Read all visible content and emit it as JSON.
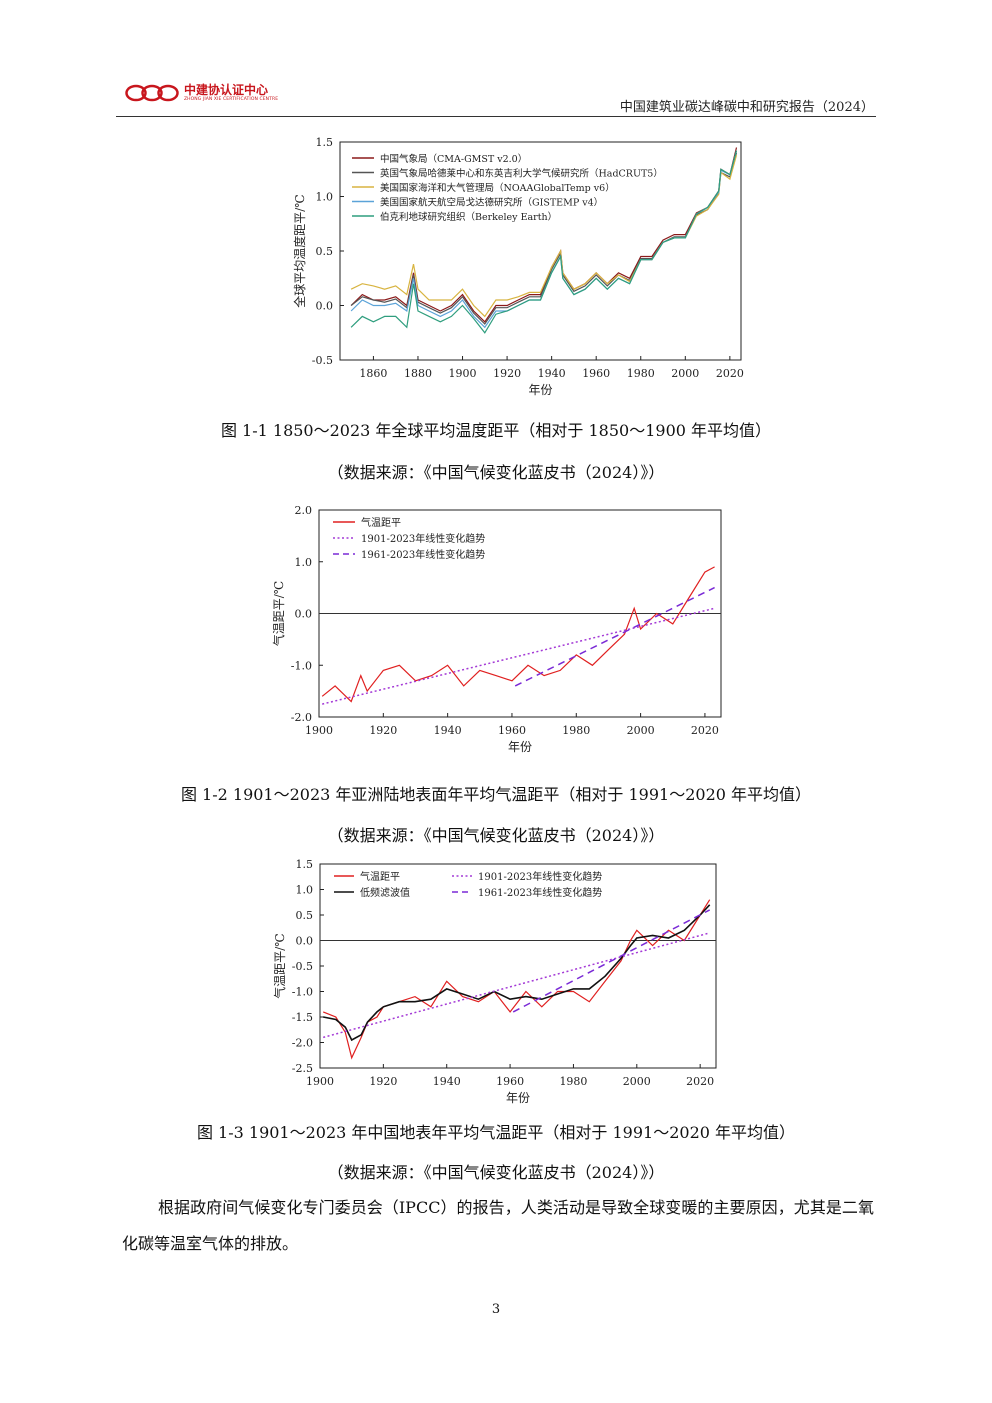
{
  "header": {
    "logo_cn": "中建协认证中心",
    "logo_en": "ZHONG JIAN XIE CERTIFICATION CENTRE",
    "title": "中国建筑业碳达峰碳中和研究报告（2024）"
  },
  "figures": [
    {
      "caption": "图 1-1 1850～2023 年全球平均温度距平（相对于 1850～1900 年平均值）",
      "source": "（数据来源：《中国气候变化蓝皮书（2024）》）"
    },
    {
      "caption": "图 1-2 1901～2023 年亚洲陆地表面年平均气温距平（相对于 1991～2020 年平均值）",
      "source": "（数据来源：《中国气候变化蓝皮书（2024）》）"
    },
    {
      "caption": "图 1-3 1901～2023 年中国地表年平均气温距平（相对于 1991～2020 年平均值）",
      "source": "（数据来源：《中国气候变化蓝皮书（2024）》）"
    }
  ],
  "body_text": "根据政府间气候变化专门委员会（IPCC）的报告，人类活动是导致全球变暖的主要原因，尤其是二氧化碳等温室气体的排放。",
  "page_number": "3",
  "chart_data": [
    {
      "type": "line",
      "title": "",
      "xlabel": "年份",
      "ylabel": "全球平均温度距平/℃",
      "xlim": [
        1845,
        2025
      ],
      "ylim": [
        -0.5,
        1.5
      ],
      "xticks": [
        "1860",
        "1880",
        "1900",
        "1920",
        "1940",
        "1960",
        "1980",
        "2000",
        "2020"
      ],
      "yticks": [
        "-0.5",
        "0.0",
        "0.5",
        "1.0",
        "1.5"
      ],
      "legend_position": "top-left",
      "grid": false,
      "x": [
        1850,
        1855,
        1860,
        1865,
        1870,
        1875,
        1878,
        1880,
        1885,
        1890,
        1895,
        1900,
        1905,
        1910,
        1915,
        1920,
        1925,
        1930,
        1935,
        1940,
        1944,
        1945,
        1950,
        1955,
        1960,
        1965,
        1970,
        1975,
        1980,
        1985,
        1990,
        1995,
        2000,
        2005,
        2010,
        2015,
        2016,
        2020,
        2023
      ],
      "series": [
        {
          "name": "中国气象局（CMA-GMST v2.0）",
          "color": "#8b1a1a",
          "values": [
            0.0,
            0.1,
            0.05,
            0.05,
            0.08,
            0.0,
            0.3,
            0.05,
            0.0,
            -0.05,
            0.0,
            0.1,
            -0.05,
            -0.15,
            0.0,
            0.0,
            0.05,
            0.1,
            0.1,
            0.35,
            0.5,
            0.3,
            0.15,
            0.2,
            0.3,
            0.2,
            0.3,
            0.25,
            0.45,
            0.45,
            0.6,
            0.65,
            0.65,
            0.85,
            0.9,
            1.05,
            1.25,
            1.2,
            1.45
          ]
        },
        {
          "name": "英国气象局哈德莱中心和东英吉利大学气候研究所（HadCRUT5）",
          "color": "#555555",
          "values": [
            0.0,
            0.08,
            0.05,
            0.03,
            0.06,
            -0.02,
            0.28,
            0.03,
            -0.02,
            -0.07,
            -0.02,
            0.08,
            -0.07,
            -0.17,
            -0.02,
            -0.02,
            0.03,
            0.08,
            0.08,
            0.33,
            0.48,
            0.28,
            0.13,
            0.18,
            0.28,
            0.18,
            0.28,
            0.23,
            0.43,
            0.43,
            0.58,
            0.63,
            0.63,
            0.83,
            0.88,
            1.03,
            1.22,
            1.18,
            1.4
          ]
        },
        {
          "name": "美国国家海洋和大气管理局（NOAAGlobalTemp v6）",
          "color": "#d8b440",
          "values": [
            0.15,
            0.2,
            0.18,
            0.15,
            0.18,
            0.1,
            0.38,
            0.15,
            0.05,
            0.05,
            0.05,
            0.15,
            0.0,
            -0.1,
            0.05,
            0.05,
            0.08,
            0.12,
            0.12,
            0.35,
            0.5,
            0.3,
            0.15,
            0.2,
            0.3,
            0.2,
            0.28,
            0.22,
            0.42,
            0.42,
            0.58,
            0.62,
            0.62,
            0.82,
            0.88,
            1.02,
            1.22,
            1.16,
            1.38
          ]
        },
        {
          "name": "美国国家航天航空局戈达德研究所（GISTEMP v4）",
          "color": "#5ba3d8",
          "values": [
            -0.05,
            0.05,
            0.0,
            0.0,
            0.02,
            -0.05,
            0.25,
            0.0,
            -0.05,
            -0.1,
            -0.05,
            0.05,
            -0.1,
            -0.2,
            -0.05,
            -0.05,
            0.0,
            0.05,
            0.05,
            0.3,
            0.45,
            0.25,
            0.1,
            0.15,
            0.25,
            0.15,
            0.25,
            0.2,
            0.42,
            0.42,
            0.58,
            0.62,
            0.62,
            0.84,
            0.9,
            1.04,
            1.24,
            1.2,
            1.42
          ]
        },
        {
          "name": "伯克利地球研究组织（Berkeley Earth）",
          "color": "#2f9e7e",
          "values": [
            -0.2,
            -0.1,
            -0.15,
            -0.1,
            -0.1,
            -0.2,
            0.2,
            -0.05,
            -0.1,
            -0.15,
            -0.1,
            0.0,
            -0.12,
            -0.25,
            -0.08,
            -0.05,
            0.0,
            0.05,
            0.05,
            0.3,
            0.45,
            0.25,
            0.1,
            0.15,
            0.25,
            0.15,
            0.25,
            0.2,
            0.42,
            0.42,
            0.58,
            0.62,
            0.62,
            0.84,
            0.9,
            1.05,
            1.25,
            1.2,
            1.42
          ]
        }
      ]
    },
    {
      "type": "line",
      "title": "",
      "xlabel": "年份",
      "ylabel": "气温距平/℃",
      "xlim": [
        1900,
        2025
      ],
      "ylim": [
        -2.0,
        2.0
      ],
      "xticks": [
        "1900",
        "1920",
        "1940",
        "1960",
        "1980",
        "2000",
        "2020"
      ],
      "yticks": [
        "-2.0",
        "-1.0",
        "0.0",
        "1.0",
        "2.0"
      ],
      "legend_position": "top-left",
      "zero_line": true,
      "x": [
        1901,
        1905,
        1910,
        1913,
        1915,
        1920,
        1925,
        1930,
        1935,
        1940,
        1945,
        1950,
        1955,
        1960,
        1965,
        1970,
        1975,
        1980,
        1985,
        1990,
        1995,
        1998,
        2000,
        2005,
        2010,
        2015,
        2020,
        2023
      ],
      "series": [
        {
          "name": "气温距平",
          "color": "#e02020",
          "style": "solid",
          "values": [
            -1.6,
            -1.4,
            -1.7,
            -1.2,
            -1.5,
            -1.1,
            -1.0,
            -1.3,
            -1.2,
            -1.0,
            -1.4,
            -1.1,
            -1.2,
            -1.3,
            -1.0,
            -1.2,
            -1.1,
            -0.8,
            -1.0,
            -0.7,
            -0.4,
            0.1,
            -0.3,
            0.0,
            -0.2,
            0.3,
            0.8,
            0.9
          ]
        },
        {
          "name": "1901-2023年线性变化趋势",
          "color": "#a43ad6",
          "style": "dotted",
          "x": [
            1901,
            2023
          ],
          "values": [
            -1.75,
            0.1
          ]
        },
        {
          "name": "1961-2023年线性变化趋势",
          "color": "#7a2ad6",
          "style": "dashed",
          "x": [
            1961,
            2023
          ],
          "values": [
            -1.4,
            0.5
          ]
        }
      ]
    },
    {
      "type": "line",
      "title": "",
      "xlabel": "年份",
      "ylabel": "气温距平/℃",
      "xlim": [
        1900,
        2025
      ],
      "ylim": [
        -2.5,
        1.5
      ],
      "xticks": [
        "1900",
        "1920",
        "1940",
        "1960",
        "1980",
        "2000",
        "2020"
      ],
      "yticks": [
        "-2.5",
        "-2.0",
        "-1.5",
        "-1.0",
        "-0.5",
        "0.0",
        "0.5",
        "1.0",
        "1.5"
      ],
      "legend_position": "top-left",
      "zero_line": true,
      "x": [
        1901,
        1905,
        1908,
        1910,
        1913,
        1915,
        1918,
        1920,
        1925,
        1930,
        1935,
        1940,
        1945,
        1950,
        1955,
        1960,
        1965,
        1970,
        1975,
        1980,
        1985,
        1990,
        1995,
        1998,
        2000,
        2005,
        2010,
        2015,
        2020,
        2023
      ],
      "series": [
        {
          "name": "气温距平",
          "color": "#e02020",
          "style": "solid",
          "values": [
            -1.4,
            -1.5,
            -1.8,
            -2.3,
            -1.9,
            -1.6,
            -1.5,
            -1.3,
            -1.2,
            -1.1,
            -1.3,
            -0.8,
            -1.1,
            -1.2,
            -1.0,
            -1.4,
            -1.0,
            -1.3,
            -1.0,
            -1.0,
            -1.2,
            -0.8,
            -0.4,
            0.0,
            0.2,
            -0.1,
            0.2,
            0.0,
            0.5,
            0.8
          ]
        },
        {
          "name": "低频滤波值",
          "color": "#111111",
          "style": "solid",
          "values": [
            -1.5,
            -1.55,
            -1.7,
            -1.95,
            -1.85,
            -1.6,
            -1.4,
            -1.3,
            -1.2,
            -1.2,
            -1.15,
            -0.95,
            -1.05,
            -1.15,
            -1.0,
            -1.15,
            -1.1,
            -1.15,
            -1.05,
            -0.95,
            -0.95,
            -0.7,
            -0.35,
            -0.1,
            0.05,
            0.1,
            0.05,
            0.2,
            0.5,
            0.7
          ]
        },
        {
          "name": "1901-2023年线性变化趋势",
          "color": "#a43ad6",
          "style": "dotted",
          "x": [
            1901,
            2023
          ],
          "values": [
            -1.9,
            0.15
          ]
        },
        {
          "name": "1961-2023年线性变化趋势",
          "color": "#7a2ad6",
          "style": "dashed",
          "x": [
            1961,
            2023
          ],
          "values": [
            -1.4,
            0.6
          ]
        }
      ]
    }
  ]
}
